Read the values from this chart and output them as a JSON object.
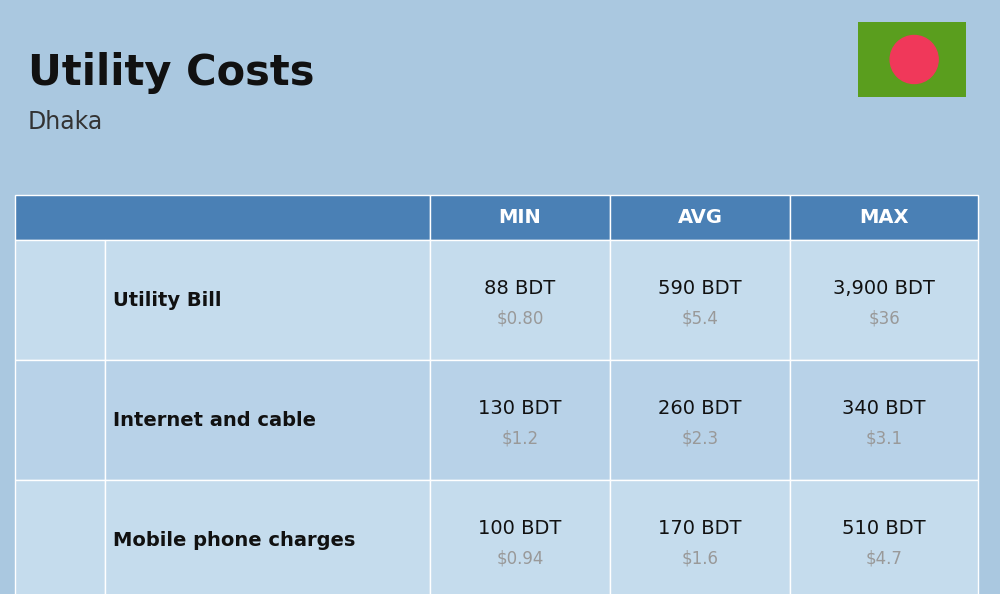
{
  "title": "Utility Costs",
  "subtitle": "Dhaka",
  "bg_color": "#aac8e0",
  "header_bg": "#4a80b5",
  "header_text_color": "#ffffff",
  "row_bg_light": "#c5dced",
  "row_bg_dark": "#b8d2e8",
  "col_headers": [
    "MIN",
    "AVG",
    "MAX"
  ],
  "rows": [
    {
      "label": "Utility Bill",
      "min_bdt": "88 BDT",
      "min_usd": "$0.80",
      "avg_bdt": "590 BDT",
      "avg_usd": "$5.4",
      "max_bdt": "3,900 BDT",
      "max_usd": "$36"
    },
    {
      "label": "Internet and cable",
      "min_bdt": "130 BDT",
      "min_usd": "$1.2",
      "avg_bdt": "260 BDT",
      "avg_usd": "$2.3",
      "max_bdt": "340 BDT",
      "max_usd": "$3.1"
    },
    {
      "label": "Mobile phone charges",
      "min_bdt": "100 BDT",
      "min_usd": "$0.94",
      "avg_bdt": "170 BDT",
      "avg_usd": "$1.6",
      "max_bdt": "510 BDT",
      "max_usd": "$4.7"
    }
  ],
  "flag_green": "#5a9e1e",
  "flag_red": "#f0385a",
  "text_dark": "#111111",
  "text_gray": "#999999"
}
